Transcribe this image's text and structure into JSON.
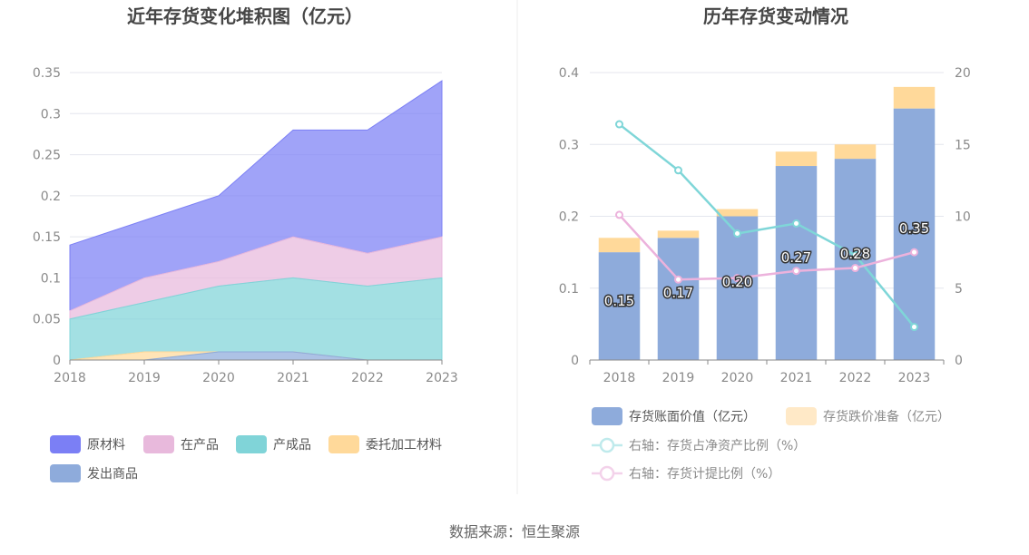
{
  "source": "数据来源：恒生聚源",
  "chart_data": [
    {
      "type": "area",
      "title": "近年存货变化堆积图（亿元）",
      "stacked": true,
      "categories": [
        "2018",
        "2019",
        "2020",
        "2021",
        "2022",
        "2023"
      ],
      "ylim": [
        0,
        0.35
      ],
      "yticks": [
        "0",
        "0.05",
        "0.1",
        "0.15",
        "0.2",
        "0.25",
        "0.3",
        "0.35"
      ],
      "grid": true,
      "legend_position": "bottom",
      "series": [
        {
          "name": "原材料",
          "values": [
            0.08,
            0.07,
            0.08,
            0.13,
            0.15,
            0.19
          ],
          "color": "#7b7ff5"
        },
        {
          "name": "在产品",
          "values": [
            0.01,
            0.03,
            0.03,
            0.05,
            0.04,
            0.05
          ],
          "color": "#e8b9dc"
        },
        {
          "name": "产成品",
          "values": [
            0.05,
            0.06,
            0.08,
            0.09,
            0.09,
            0.1
          ],
          "color": "#80d4d8"
        },
        {
          "name": "委托加工材料",
          "values": [
            0.0,
            0.01,
            0.0,
            0.0,
            0.0,
            0.0
          ],
          "color": "#ffd99a"
        },
        {
          "name": "发出商品",
          "values": [
            0.0,
            0.0,
            0.01,
            0.01,
            0.0,
            0.0
          ],
          "color": "#8eabdb"
        }
      ]
    },
    {
      "type": "bar",
      "title": "历年存货变动情况",
      "categories": [
        "2018",
        "2019",
        "2020",
        "2021",
        "2022",
        "2023"
      ],
      "ylim": [
        0,
        0.4
      ],
      "yticks": [
        "0",
        "0.1",
        "0.2",
        "0.3",
        "0.4"
      ],
      "y2lim": [
        0,
        20
      ],
      "y2ticks": [
        "0",
        "5",
        "10",
        "15",
        "20"
      ],
      "grid": true,
      "legend_position": "bottom",
      "series": [
        {
          "name": "存货账面价值（亿元）",
          "kind": "bar",
          "stack": "inv",
          "values": [
            0.15,
            0.17,
            0.2,
            0.27,
            0.28,
            0.35
          ],
          "labels": [
            "0.15",
            "0.17",
            "0.20",
            "0.27",
            "0.28",
            "0.35"
          ],
          "color": "#8eabdb"
        },
        {
          "name": "存货跌价准备（亿元）",
          "kind": "bar",
          "stack": "inv",
          "values": [
            0.02,
            0.01,
            0.01,
            0.02,
            0.02,
            0.03
          ],
          "color": "#ffd99a"
        },
        {
          "name": "右轴：存货占净资产比例（%）",
          "kind": "line",
          "axis": "right",
          "values": [
            16.4,
            13.2,
            8.8,
            9.5,
            7.3,
            2.3
          ],
          "color": "#7fd6d8"
        },
        {
          "name": "右轴：存货计提比例（%）",
          "kind": "line",
          "axis": "right",
          "values": [
            10.1,
            5.6,
            5.7,
            6.2,
            6.4,
            7.5
          ],
          "color": "#ecb2dc"
        }
      ]
    }
  ]
}
